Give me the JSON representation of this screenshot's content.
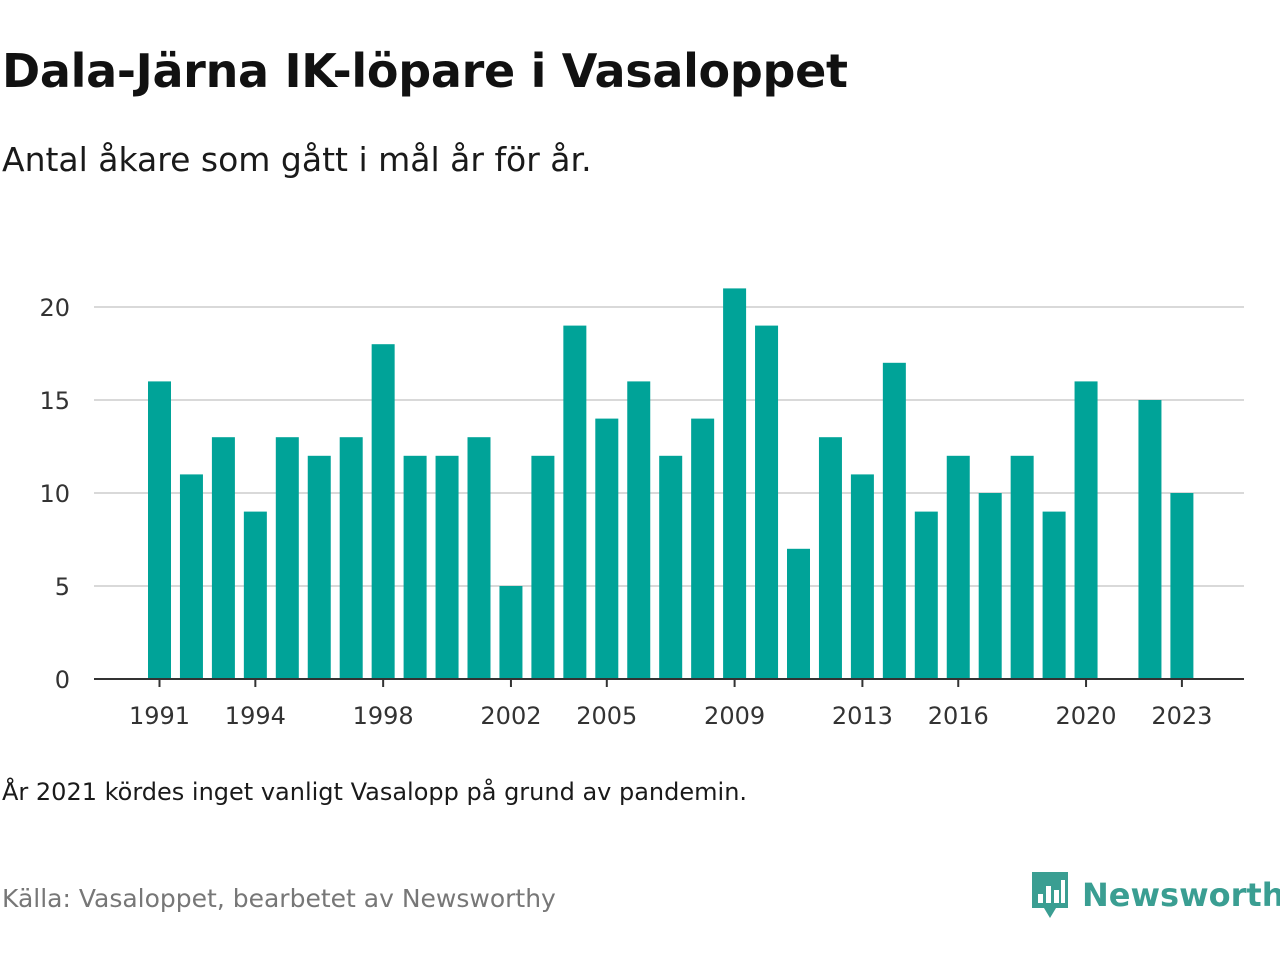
{
  "title": "Dala-Järna IK-löpare i Vasaloppet",
  "subtitle": "Antal åkare som gått i mål år för år.",
  "note": "År 2021 kördes inget vanligt Vasalopp på grund av pandemin.",
  "source": "Källa: Vasaloppet, bearbetet av Newsworthy",
  "brand": {
    "name": "Newsworthy",
    "color": "#3a9e92"
  },
  "colors": {
    "bar": "#00a398",
    "grid": "#d9d9d9",
    "axis": "#333333"
  },
  "chart_data": {
    "type": "bar",
    "x": [
      1991,
      1992,
      1993,
      1994,
      1995,
      1996,
      1997,
      1998,
      1999,
      2000,
      2001,
      2002,
      2003,
      2004,
      2005,
      2006,
      2007,
      2008,
      2009,
      2010,
      2011,
      2012,
      2013,
      2014,
      2015,
      2016,
      2017,
      2018,
      2019,
      2020,
      2021,
      2022,
      2023
    ],
    "values": [
      16,
      11,
      13,
      9,
      13,
      12,
      13,
      18,
      12,
      12,
      13,
      5,
      12,
      19,
      14,
      16,
      12,
      14,
      21,
      19,
      7,
      13,
      11,
      17,
      9,
      12,
      10,
      12,
      9,
      16,
      null,
      15,
      10
    ],
    "x_tick_labels": [
      "1991",
      "1994",
      "1998",
      "2002",
      "2005",
      "2009",
      "2013",
      "2016",
      "2020",
      "2023"
    ],
    "y_ticks": [
      0,
      5,
      10,
      15,
      20
    ],
    "ylim": [
      0,
      22
    ],
    "grid": true,
    "legend": "none"
  }
}
